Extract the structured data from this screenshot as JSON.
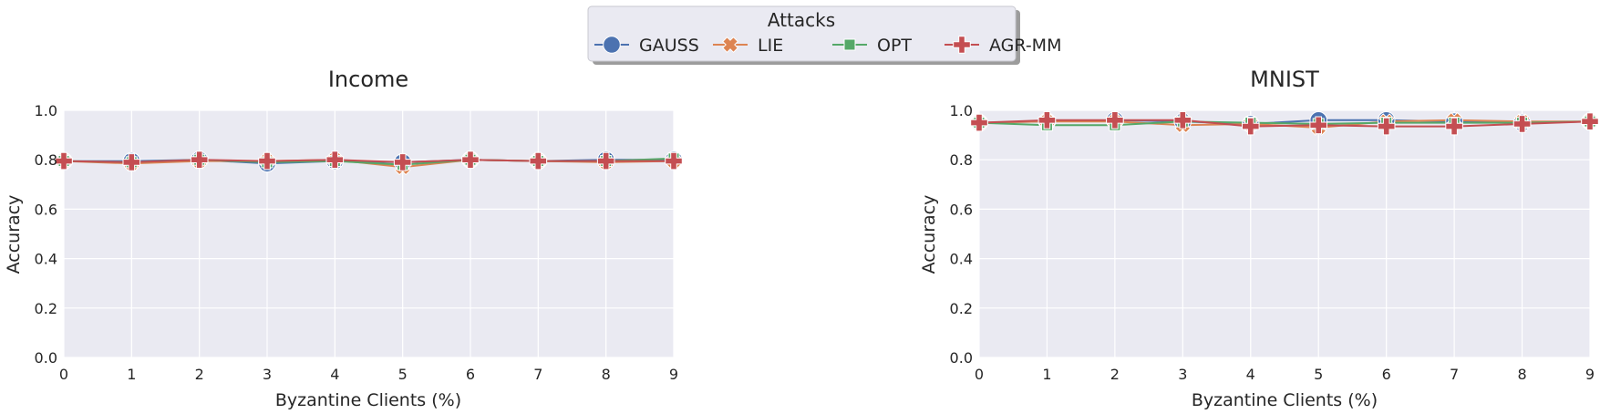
{
  "legend": {
    "title": "Attacks",
    "placement": "upper-center",
    "entries": [
      {
        "label": "GAUSS",
        "color": "#4c72b0",
        "marker": "circle"
      },
      {
        "label": "LIE",
        "color": "#dd8452",
        "marker": "x"
      },
      {
        "label": "OPT",
        "color": "#55a868",
        "marker": "square"
      },
      {
        "label": "AGR-MM",
        "color": "#c44e52",
        "marker": "plus"
      }
    ]
  },
  "chart_data": [
    {
      "type": "line",
      "title": "Income",
      "xlabel": "Byzantine Clients (%)",
      "ylabel": "Accuracy",
      "x": [
        0,
        1,
        2,
        3,
        4,
        5,
        6,
        7,
        8,
        9
      ],
      "xlim": [
        0,
        9
      ],
      "ylim": [
        0.0,
        1.0
      ],
      "xticks": [
        "0",
        "1",
        "2",
        "3",
        "4",
        "5",
        "6",
        "7",
        "8",
        "9"
      ],
      "yticks": [
        "0.0",
        "0.2",
        "0.4",
        "0.6",
        "0.8",
        "1.0"
      ],
      "grid": true,
      "series": [
        {
          "name": "GAUSS",
          "values": [
            0.795,
            0.795,
            0.8,
            0.785,
            0.795,
            0.79,
            0.8,
            0.795,
            0.8,
            0.8
          ]
        },
        {
          "name": "LIE",
          "values": [
            0.795,
            0.785,
            0.795,
            0.795,
            0.8,
            0.77,
            0.8,
            0.795,
            0.79,
            0.795
          ]
        },
        {
          "name": "OPT",
          "values": [
            0.795,
            0.79,
            0.8,
            0.79,
            0.795,
            0.78,
            0.8,
            0.795,
            0.795,
            0.805
          ]
        },
        {
          "name": "AGR-MM",
          "values": [
            0.795,
            0.79,
            0.8,
            0.795,
            0.8,
            0.79,
            0.8,
            0.795,
            0.795,
            0.795
          ]
        }
      ]
    },
    {
      "type": "line",
      "title": "MNIST",
      "xlabel": "Byzantine Clients (%)",
      "ylabel": "Accuracy",
      "x": [
        0,
        1,
        2,
        3,
        4,
        5,
        6,
        7,
        8,
        9
      ],
      "xlim": [
        0,
        9
      ],
      "ylim": [
        0.0,
        1.0
      ],
      "xticks": [
        "0",
        "1",
        "2",
        "3",
        "4",
        "5",
        "6",
        "7",
        "8",
        "9"
      ],
      "yticks": [
        "0.0",
        "0.2",
        "0.4",
        "0.6",
        "0.8",
        "1.0"
      ],
      "grid": true,
      "series": [
        {
          "name": "GAUSS",
          "values": [
            0.95,
            0.955,
            0.96,
            0.955,
            0.945,
            0.96,
            0.96,
            0.955,
            0.95,
            0.955
          ]
        },
        {
          "name": "LIE",
          "values": [
            0.95,
            0.955,
            0.955,
            0.94,
            0.945,
            0.93,
            0.955,
            0.96,
            0.955,
            0.955
          ]
        },
        {
          "name": "OPT",
          "values": [
            0.95,
            0.94,
            0.94,
            0.955,
            0.95,
            0.945,
            0.95,
            0.95,
            0.95,
            0.955
          ]
        },
        {
          "name": "AGR-MM",
          "values": [
            0.95,
            0.96,
            0.96,
            0.96,
            0.935,
            0.94,
            0.935,
            0.935,
            0.945,
            0.955
          ]
        }
      ]
    }
  ]
}
